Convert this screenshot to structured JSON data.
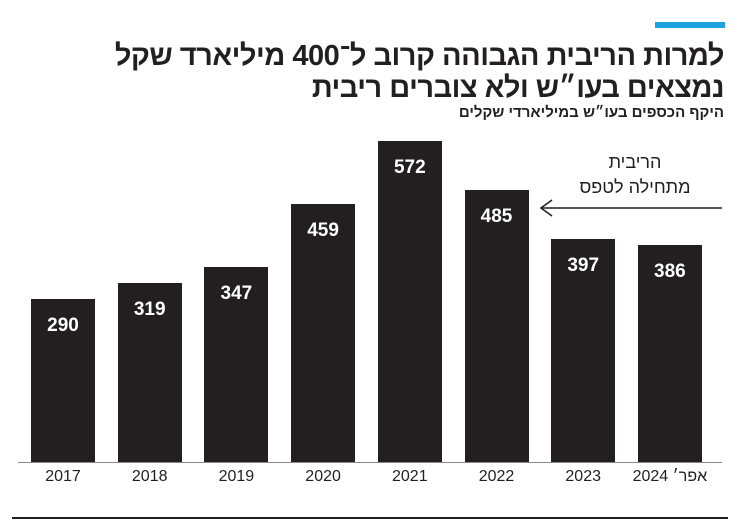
{
  "chart_data": {
    "type": "bar",
    "title": [
      "למרות הריבית הגבוהה קרוב ל־400 מיליארד שקל",
      "נמצאים בעו״ש ולא צוברים ריבית"
    ],
    "subtitle": "היקף הכספים בעו״ש במיליארדי שקלים",
    "annotation": [
      "הריבית",
      "מתחילה לטפס"
    ],
    "categories": [
      "2017",
      "2018",
      "2019",
      "2020",
      "2021",
      "2022",
      "2023",
      "אפר׳ 2024"
    ],
    "values": [
      290,
      319,
      347,
      459,
      572,
      485,
      397,
      386
    ],
    "color": "#231f20"
  }
}
